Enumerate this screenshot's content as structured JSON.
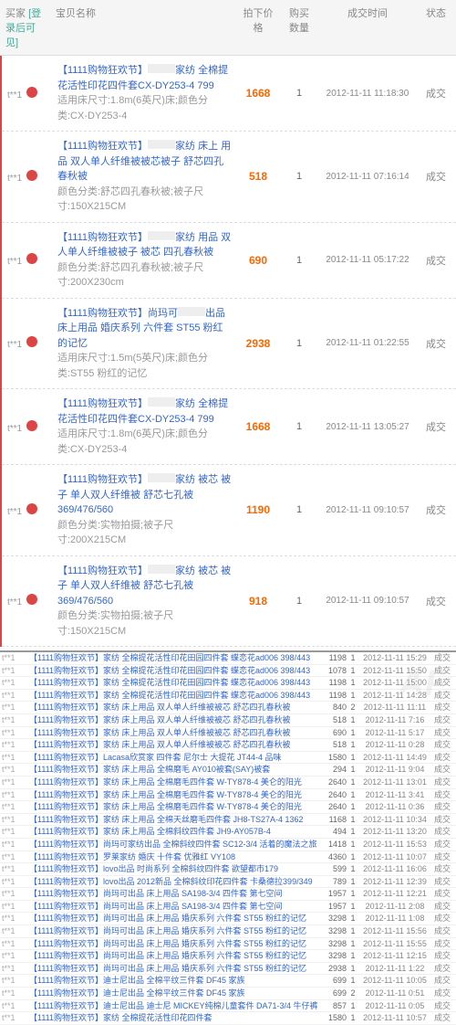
{
  "header": {
    "buyer": "买家",
    "login_tip": "[登录后可见]",
    "item_name": "宝贝名称",
    "price": "拍下价格",
    "qty": "购买数量",
    "time": "成交时间",
    "status": "状态"
  },
  "big_rows": [
    {
      "buyer": "t**1",
      "title": "【1111购物狂欢节】",
      "brand": "家纺",
      "desc": "全棉提花活性印花四件套CX-DY253-4 799",
      "extra": "适用床尺寸:1.8m(6英尺)床;颜色分类:CX-DY253-4",
      "price": "1668",
      "qty": "1",
      "time": "2012-11-11 11:18:30",
      "status": "成交"
    },
    {
      "buyer": "t**1",
      "title": "【1111购物狂欢节】",
      "brand": "家纺 床上",
      "desc": "用品 双人单人纤维被被芯被子 舒芯四孔春秋被",
      "extra": "颜色分类:舒芯四孔春秋被;被子尺寸:150X215CM",
      "price": "518",
      "qty": "1",
      "time": "2012-11-11 07:16:14",
      "status": "成交"
    },
    {
      "buyer": "t**1",
      "title": "【1111购物狂欢节】",
      "brand": "家纺",
      "desc": "用品 双人单人纤维被被子 被芯 四孔春秋被",
      "extra": "颜色分类:舒芯四孔春秋被;被子尺寸:200X230cm",
      "price": "690",
      "qty": "1",
      "time": "2012-11-11 05:17:22",
      "status": "成交"
    },
    {
      "buyer": "t**1",
      "title": "【1111购物狂欢节】尚玛可",
      "brand": "出品",
      "desc": "床上用品 婚庆系列 六件套 ST55 粉红的记忆",
      "extra": "适用床尺寸:1.5m(5英尺)床;颜色分类:ST55 粉红的记忆",
      "price": "2938",
      "qty": "1",
      "time": "2012-11-11 01:22:55",
      "status": "成交"
    },
    {
      "buyer": "t**1",
      "title": "【1111购物狂欢节】",
      "brand": "家纺",
      "desc": "全棉提花活性印花四件套CX-DY253-4 799",
      "extra": "适用床尺寸:1.8m(6英尺)床;颜色分类:CX-DY253-4",
      "price": "1668",
      "qty": "1",
      "time": "2012-11-11 13:05:27",
      "status": "成交"
    },
    {
      "buyer": "t**1",
      "title": "【1111购物狂欢节】",
      "brand": "家纺 被芯",
      "desc": "被子 单人双人纤维被 舒芯七孔被 369/476/560",
      "extra": "颜色分类:实物拍摄;被子尺寸:200X215CM",
      "price": "1190",
      "qty": "1",
      "time": "2012-11-11 09:10:57",
      "status": "成交"
    },
    {
      "buyer": "t**1",
      "title": "【1111购物狂欢节】",
      "brand": "家纺 被芯",
      "desc": "被子 单人双人纤维被 舒芯七孔被 369/476/560",
      "extra": "颜色分类:实物拍摄;被子尺寸:150X215CM",
      "price": "918",
      "qty": "1",
      "time": "2012-11-11 09:10:57",
      "status": "成交"
    }
  ],
  "small_rows": [
    {
      "b": "t**1",
      "t": "【1111购物狂欢节】",
      "d": "家纺 全棉提花活性印花田园四件套 蝶恋花ad006 398/443",
      "p": "1198",
      "q": "1",
      "tm": "2012-11-11 15:29",
      "s": "成交"
    },
    {
      "b": "t**1",
      "t": "【1111购物狂欢节】",
      "d": "家纺 全棉提花活性印花田园四件套 蝶恋花ad006 398/443",
      "p": "1078",
      "q": "1",
      "tm": "2012-11-11 15:50",
      "s": "成交"
    },
    {
      "b": "t**1",
      "t": "【1111购物狂欢节】",
      "d": "家纺 全棉提花活性印花田园四件套 蝶恋花ad006 398/443",
      "p": "1198",
      "q": "1",
      "tm": "2012-11-11 15:00",
      "s": "成交"
    },
    {
      "b": "t**1",
      "t": "【1111购物狂欢节】",
      "d": "家纺 全棉提花活性印花田园四件套 蝶恋花ad006 398/443",
      "p": "1198",
      "q": "1",
      "tm": "2012-11-11 14:28",
      "s": "成交"
    },
    {
      "b": "t**1",
      "t": "【1111购物狂欢节】",
      "d": "家纺 床上用品 双人单人纤维被被芯 舒芯四孔春秋被",
      "p": "840",
      "q": "2",
      "tm": "2012-11-11 11:11",
      "s": "成交"
    },
    {
      "b": "t**1",
      "t": "【1111购物狂欢节】",
      "d": "家纺 床上用品 双人单人纤维被被芯 舒芯四孔春秋被",
      "p": "518",
      "q": "1",
      "tm": "2012-11-11 7:16",
      "s": "成交"
    },
    {
      "b": "t**1",
      "t": "【1111购物狂欢节】",
      "d": "家纺 床上用品 双人单人纤维被被芯 舒芯四孔春秋被",
      "p": "690",
      "q": "1",
      "tm": "2012-11-11 5:17",
      "s": "成交"
    },
    {
      "b": "t**1",
      "t": "【1111购物狂欢节】",
      "d": "家纺 床上用品 双人单人纤维被被芯 舒芯四孔春秋被",
      "p": "518",
      "q": "1",
      "tm": "2012-11-11 0:28",
      "s": "成交"
    },
    {
      "b": "t**1",
      "t": "【1111购物狂欢节】",
      "d": "Lacasa欣赏家 四件套 尼尔士 大提花 JT44-4 品味",
      "p": "1580",
      "q": "1",
      "tm": "2012-11-11 14:49",
      "s": "成交"
    },
    {
      "b": "t**1",
      "t": "【1111购物狂欢节】",
      "d": "家纺 床上用品 全棉磨毛 AY010被套(SAY)被套",
      "p": "294",
      "q": "1",
      "tm": "2012-11-11 9:04",
      "s": "成交"
    },
    {
      "b": "t**1",
      "t": "【1111购物狂欢节】",
      "d": "家纺 床上用品 全棉磨毛四件套 W-TY878-4 美仑的阳光",
      "p": "2640",
      "q": "1",
      "tm": "2012-11-11 13:01",
      "s": "成交"
    },
    {
      "b": "t**1",
      "t": "【1111购物狂欢节】",
      "d": "家纺 床上用品 全棉磨毛四件套 W-TY878-4 美仑的阳光",
      "p": "2640",
      "q": "1",
      "tm": "2012-11-11 3:41",
      "s": "成交"
    },
    {
      "b": "t**1",
      "t": "【1111购物狂欢节】",
      "d": "家纺 床上用品 全棉磨毛四件套 W-TY878-4 美仑的阳光",
      "p": "2640",
      "q": "1",
      "tm": "2012-11-11 0:36",
      "s": "成交"
    },
    {
      "b": "t**1",
      "t": "【1111购物狂欢节】",
      "d": "家纺 床上用品 全棉天丝磨毛四件套 JH8-TS27A-4 1362",
      "p": "1168",
      "q": "1",
      "tm": "2012-11-11 10:34",
      "s": "成交"
    },
    {
      "b": "t**1",
      "t": "【1111购物狂欢节】",
      "d": "家纺 床上用品 全棉斜纹四件套 JH9-AY057B-4",
      "p": "494",
      "q": "1",
      "tm": "2012-11-11 13:20",
      "s": "成交"
    },
    {
      "b": "t**1",
      "t": "【1111购物狂欢节】尚玛可",
      "d": "家纺出品 全棉斜纹四件套 SC12-3/4 活着的魔法之旅",
      "p": "1418",
      "q": "1",
      "tm": "2012-11-11 15:53",
      "s": "成交"
    },
    {
      "b": "t**1",
      "t": "【1111购物狂欢节】",
      "d": "罗莱家纺 婚庆 十件套 优雅红 VY108",
      "p": "4360",
      "q": "1",
      "tm": "2012-11-11 10:07",
      "s": "成交"
    },
    {
      "b": "t**1",
      "t": "【1111购物狂欢节】lovo",
      "d": "出品 时尚系列 全棉斜纹四件套 欲望都市179",
      "p": "599",
      "q": "1",
      "tm": "2012-11-11 16:06",
      "s": "成交"
    },
    {
      "b": "t**1",
      "t": "【1111购物狂欢节】lovo",
      "d": "出品 2012新品 全棉斜纹印花四件套 卡桑德拉399/349",
      "p": "789",
      "q": "1",
      "tm": "2012-11-11 12:39",
      "s": "成交"
    },
    {
      "b": "t**1",
      "t": "【1111购物狂欢节】尚玛可",
      "d": "出品 床上用品 SA198-3/4 四件套 第七空间",
      "p": "1957",
      "q": "1",
      "tm": "2012-11-11 12:21",
      "s": "成交"
    },
    {
      "b": "t**1",
      "t": "【1111购物狂欢节】尚玛可",
      "d": "出品 床上用品 SA198-3/4 四件套 第七空间",
      "p": "1957",
      "q": "1",
      "tm": "2012-11-11 2:08",
      "s": "成交"
    },
    {
      "b": "t**1",
      "t": "【1111购物狂欢节】尚玛可",
      "d": "出品 床上用品 婚庆系列 六件套 ST55 粉红的记忆",
      "p": "3298",
      "q": "1",
      "tm": "2012-11-11 1:08",
      "s": "成交"
    },
    {
      "b": "t**1",
      "t": "【1111购物狂欢节】尚玛可",
      "d": "出品 床上用品 婚庆系列 六件套 ST55 粉红的记忆",
      "p": "3298",
      "q": "1",
      "tm": "2012-11-11 15:56",
      "s": "成交"
    },
    {
      "b": "t**1",
      "t": "【1111购物狂欢节】尚玛可",
      "d": "出品 床上用品 婚庆系列 六件套 ST55 粉红的记忆",
      "p": "3298",
      "q": "1",
      "tm": "2012-11-11 15:55",
      "s": "成交"
    },
    {
      "b": "t**1",
      "t": "【1111购物狂欢节】尚玛可",
      "d": "出品 床上用品 婚庆系列 六件套 ST55 粉红的记忆",
      "p": "3298",
      "q": "1",
      "tm": "2012-11-11 12:15",
      "s": "成交"
    },
    {
      "b": "t**1",
      "t": "【1111购物狂欢节】尚玛可",
      "d": "出品 床上用品 婚庆系列 六件套 ST55 粉红的记忆",
      "p": "2938",
      "q": "1",
      "tm": "2012-11-11 1:22",
      "s": "成交"
    },
    {
      "b": "t**1",
      "t": "【1111购物狂欢节】迪士尼",
      "d": "出品 全棉平纹三件套 DF45 家族",
      "p": "699",
      "q": "1",
      "tm": "2012-11-11 10:05",
      "s": "成交"
    },
    {
      "b": "t**1",
      "t": "【1111购物狂欢节】迪士尼",
      "d": "出品 全棉平纹三件套 DF45 家族",
      "p": "699",
      "q": "2",
      "tm": "2012-11-11 0:51",
      "s": "成交"
    },
    {
      "b": "t**1",
      "t": "【1111购物狂欢节】迪士尼",
      "d": "出品 迪士尼 MICKEY纯棉儿童套件 DA71-3/4 牛仔裤行",
      "p": "857",
      "q": "1",
      "tm": "2012-11-11 0:05",
      "s": "成交"
    },
    {
      "b": "t**1",
      "t": "【1111购物狂欢节】",
      "d": "家纺 全棉提花活性印花四件套",
      "p": "1580",
      "q": "1",
      "tm": "2012-11-11 10:57",
      "s": "成交"
    }
  ],
  "colors": {
    "link": "#3366cc",
    "price": "#ff6600",
    "border_left": "#dd4444",
    "gray": "#999999",
    "header_bg": "#f5f5f5"
  },
  "watermark": "AF"
}
